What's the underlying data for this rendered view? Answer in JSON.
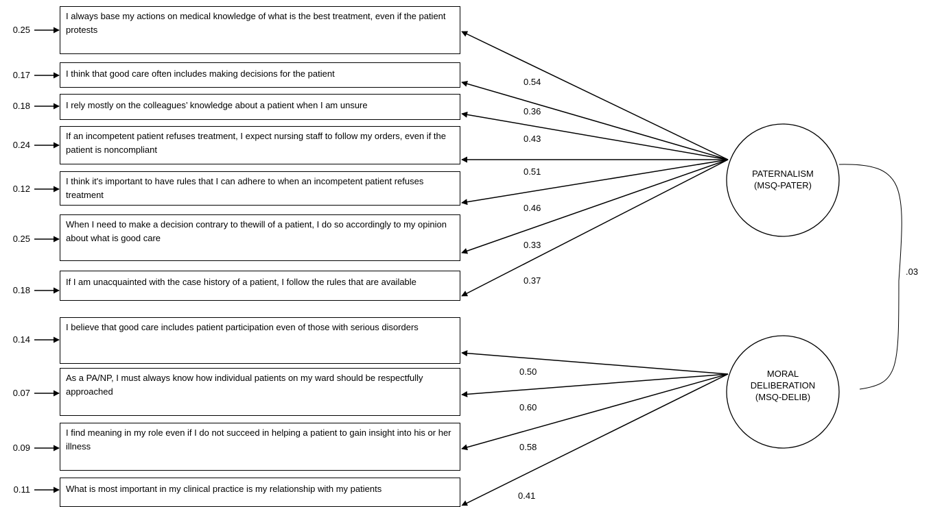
{
  "items": [
    {
      "text": "I always base my actions on medical knowledge of what is the best treatment, even if the patient protests",
      "error": "0.25",
      "loading": "0.54",
      "factor": "pater"
    },
    {
      "text": "I think that good care often includes making decisions for the patient",
      "error": "0.17",
      "loading": "0.36",
      "factor": "pater"
    },
    {
      "text": "I rely mostly on the colleagues’ knowledge about a patient when I am unsure",
      "error": "0.18",
      "loading": "0.43",
      "factor": "pater"
    },
    {
      "text": "If an incompetent patient refuses treatment, I expect nursing staff to follow my orders, even if the patient is noncompliant",
      "error": "0.24",
      "loading": "0.51",
      "factor": "pater"
    },
    {
      "text": "I think it's important to have rules that I can adhere to when an incompetent patient refuses treatment",
      "error": "0.12",
      "loading": "0.46",
      "factor": "pater"
    },
    {
      "text": "When I need to make a decision contrary to  thewill of a patient, I do so accordingly to my opinion about what is good care",
      "error": "0.25",
      "loading": "0.33",
      "factor": "pater"
    },
    {
      "text": "If I am unacquainted with the case history of a patient, I follow the rules that are available",
      "error": "0.18",
      "loading": "0.37",
      "factor": "pater"
    },
    {
      "text": "I believe that good care includes patient participation even of those with serious disorders",
      "error": "0.14",
      "loading": "0.50",
      "factor": "delib"
    },
    {
      "text": "As a PA/NP, I must always know how individual patients on my ward should be respectfully approached",
      "error": "0.07",
      "loading": "0.60",
      "factor": "delib"
    },
    {
      "text": "I find meaning in my role even if  I do not succeed in helping a  patient to gain insight into his or her illness",
      "error": "0.09",
      "loading": "0.58",
      "factor": "delib"
    },
    {
      "text": "What is most important in my clinical practice is my relationship with my patients",
      "error": "0.11",
      "loading": "0.41",
      "factor": "delib"
    }
  ],
  "latents": {
    "pater": {
      "line1": "PATERNALISM",
      "line2": "(MSQ-PATER)"
    },
    "delib": {
      "line1": "MORAL",
      "line2": "DELIBERATION",
      "line3": "(MSQ-DELIB)"
    }
  },
  "correlation": ".03"
}
